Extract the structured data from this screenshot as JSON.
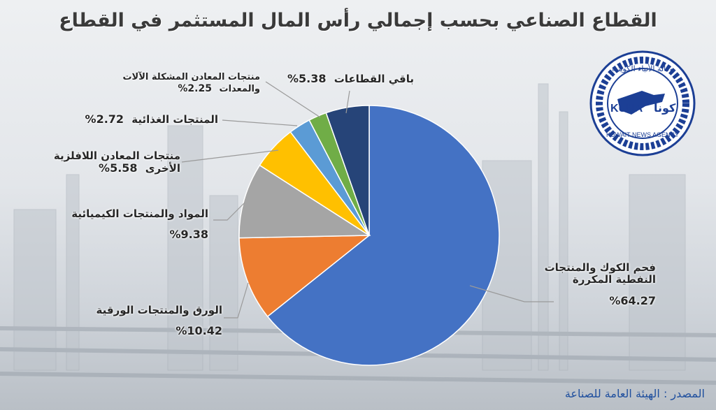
{
  "chart_data": {
    "type": "pie",
    "title": "القطاع الصناعي بحسب إجمالي رأس المال المستثمر في القطاع",
    "slices": [
      {
        "label": "فحم الكوك والمنتجات النفطية المكررة",
        "label_lines": [
          "فحم الكوك والمنتجات",
          "النفطية المكررة"
        ],
        "value": 64.27,
        "pct_text": "%64.27",
        "color": "#4472C4"
      },
      {
        "label": "الورق والمنتجات الورقية",
        "label_lines": [
          "الورق والمنتجات الورقية"
        ],
        "value": 10.42,
        "pct_text": "%10.42",
        "color": "#ED7D31"
      },
      {
        "label": "المواد والمنتجات الكيميائية",
        "label_lines": [
          "المواد والمنتجات الكيميائية"
        ],
        "value": 9.38,
        "pct_text": "%9.38",
        "color": "#A5A5A5"
      },
      {
        "label": "منتجات المعادن اللافلزية الأخرى",
        "label_lines": [
          "منتجات المعادن اللافلزية",
          "الأخرى"
        ],
        "value": 5.58,
        "pct_text": "5.58%",
        "color": "#FFC000"
      },
      {
        "label": "المنتجات الغذائية",
        "label_lines": [
          "المنتجات الغذائية"
        ],
        "value": 2.72,
        "pct_text": "2.72%",
        "color": "#5B9BD5"
      },
      {
        "label": "منتجات المعادن المشكلة الآلات والمعدات",
        "label_lines": [
          "منتجات المعادن المشكلة الآلات",
          "والمعدات"
        ],
        "value": 2.25,
        "pct_text": "2.25%",
        "color": "#70AD47"
      },
      {
        "label": "باقي القطاعات",
        "label_lines": [
          "باقي القطاعات"
        ],
        "value": 5.38,
        "pct_text": "5.38%",
        "color": "#264478"
      }
    ],
    "start": "12 o'clock",
    "direction": "clockwise",
    "legend": "none"
  },
  "source": "المصدر : الهيئة العامة للصناعة",
  "logo": {
    "text_top": "وكالة الأنباء الكويتية",
    "text_kuna": "KUNA",
    "text_arabic": "كونا",
    "text_bottom": "KUWAIT NEWS AGENCY"
  }
}
